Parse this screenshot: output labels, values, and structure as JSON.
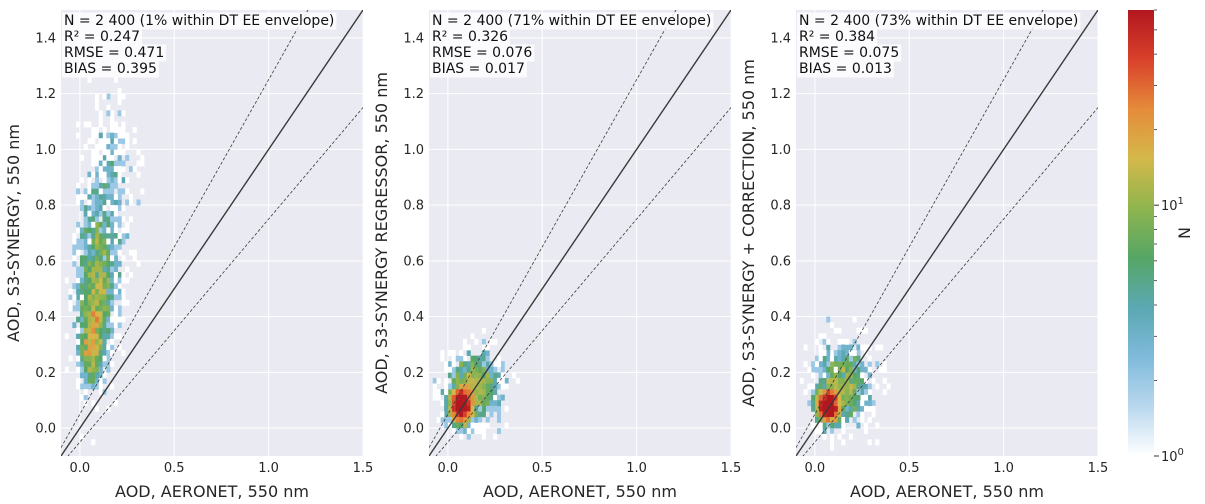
{
  "chart_data": [
    {
      "type": "heatmap",
      "xlabel": "AOD, AERONET, 550 nm",
      "ylabel": "AOD, S3-SYNERGY, 550 nm",
      "xlim": [
        -0.1,
        1.5
      ],
      "ylim": [
        -0.1,
        1.5
      ],
      "xticks": [
        "0.0",
        "0.5",
        "1.0",
        "1.5"
      ],
      "yticks": [
        "0.0",
        "0.2",
        "0.4",
        "0.6",
        "0.8",
        "1.0",
        "1.2",
        "1.4"
      ],
      "grid": true,
      "stats": [
        "N = 2 400 (1% within DT EE envelope)",
        "R² = 0.247",
        "RMSE = 0.471",
        "BIAS = 0.395"
      ],
      "reference_lines": {
        "one_to_one": true,
        "ee_offset": 0.05,
        "ee_slope_frac": 0.2
      },
      "density_clusters": [
        {
          "x": 0.06,
          "y": 0.3,
          "sx": 0.03,
          "sy": 0.08,
          "weight": 600
        },
        {
          "x": 0.09,
          "y": 0.5,
          "sx": 0.05,
          "sy": 0.14,
          "weight": 1200
        },
        {
          "x": 0.13,
          "y": 0.75,
          "sx": 0.07,
          "sy": 0.18,
          "weight": 500
        },
        {
          "x": 0.18,
          "y": 1.0,
          "sx": 0.06,
          "sy": 0.12,
          "weight": 100
        }
      ]
    },
    {
      "type": "heatmap",
      "xlabel": "AOD, AERONET, 550 nm",
      "ylabel": "AOD, S3-SYNERGY REGRESSOR, 550 nm",
      "xlim": [
        -0.1,
        1.5
      ],
      "ylim": [
        -0.1,
        1.5
      ],
      "xticks": [
        "0.0",
        "0.5",
        "1.0",
        "1.5"
      ],
      "yticks": [
        "0.0",
        "0.2",
        "0.4",
        "0.6",
        "0.8",
        "1.0",
        "1.2",
        "1.4"
      ],
      "grid": true,
      "stats": [
        "N = 2 400 (71% within DT EE envelope)",
        "R² = 0.326",
        "RMSE = 0.076",
        "BIAS = 0.017"
      ],
      "reference_lines": {
        "one_to_one": true,
        "ee_offset": 0.05,
        "ee_slope_frac": 0.2
      },
      "density_clusters": [
        {
          "x": 0.07,
          "y": 0.08,
          "sx": 0.03,
          "sy": 0.03,
          "weight": 1500
        },
        {
          "x": 0.14,
          "y": 0.15,
          "sx": 0.07,
          "sy": 0.06,
          "weight": 900
        }
      ]
    },
    {
      "type": "heatmap",
      "xlabel": "AOD, AERONET, 550 nm",
      "ylabel": "AOD, S3-SYNERGY + CORRECTION, 550 nm",
      "xlim": [
        -0.1,
        1.5
      ],
      "ylim": [
        -0.1,
        1.5
      ],
      "xticks": [
        "0.0",
        "0.5",
        "1.0",
        "1.5"
      ],
      "yticks": [
        "0.0",
        "0.2",
        "0.4",
        "0.6",
        "0.8",
        "1.0",
        "1.2",
        "1.4"
      ],
      "grid": true,
      "stats": [
        "N = 2 400 (73% within DT EE envelope)",
        "R² = 0.384",
        "RMSE = 0.075",
        "BIAS = 0.013"
      ],
      "reference_lines": {
        "one_to_one": true,
        "ee_offset": 0.05,
        "ee_slope_frac": 0.2
      },
      "density_clusters": [
        {
          "x": 0.07,
          "y": 0.08,
          "sx": 0.03,
          "sy": 0.03,
          "weight": 1500
        },
        {
          "x": 0.15,
          "y": 0.16,
          "sx": 0.07,
          "sy": 0.07,
          "weight": 900
        }
      ]
    }
  ],
  "colorbar": {
    "label": "N",
    "scale": "log",
    "range": [
      1,
      60
    ],
    "tick_labels": [
      {
        "base": "10",
        "exp": "0",
        "value": 1
      },
      {
        "base": "10",
        "exp": "1",
        "value": 10
      }
    ],
    "colors": [
      "#ffffff",
      "#b9d8ee",
      "#7fbadb",
      "#5ba8b2",
      "#55a666",
      "#8fb54e",
      "#d4b84a",
      "#e58b3a",
      "#d9412b",
      "#b2171f"
    ]
  }
}
